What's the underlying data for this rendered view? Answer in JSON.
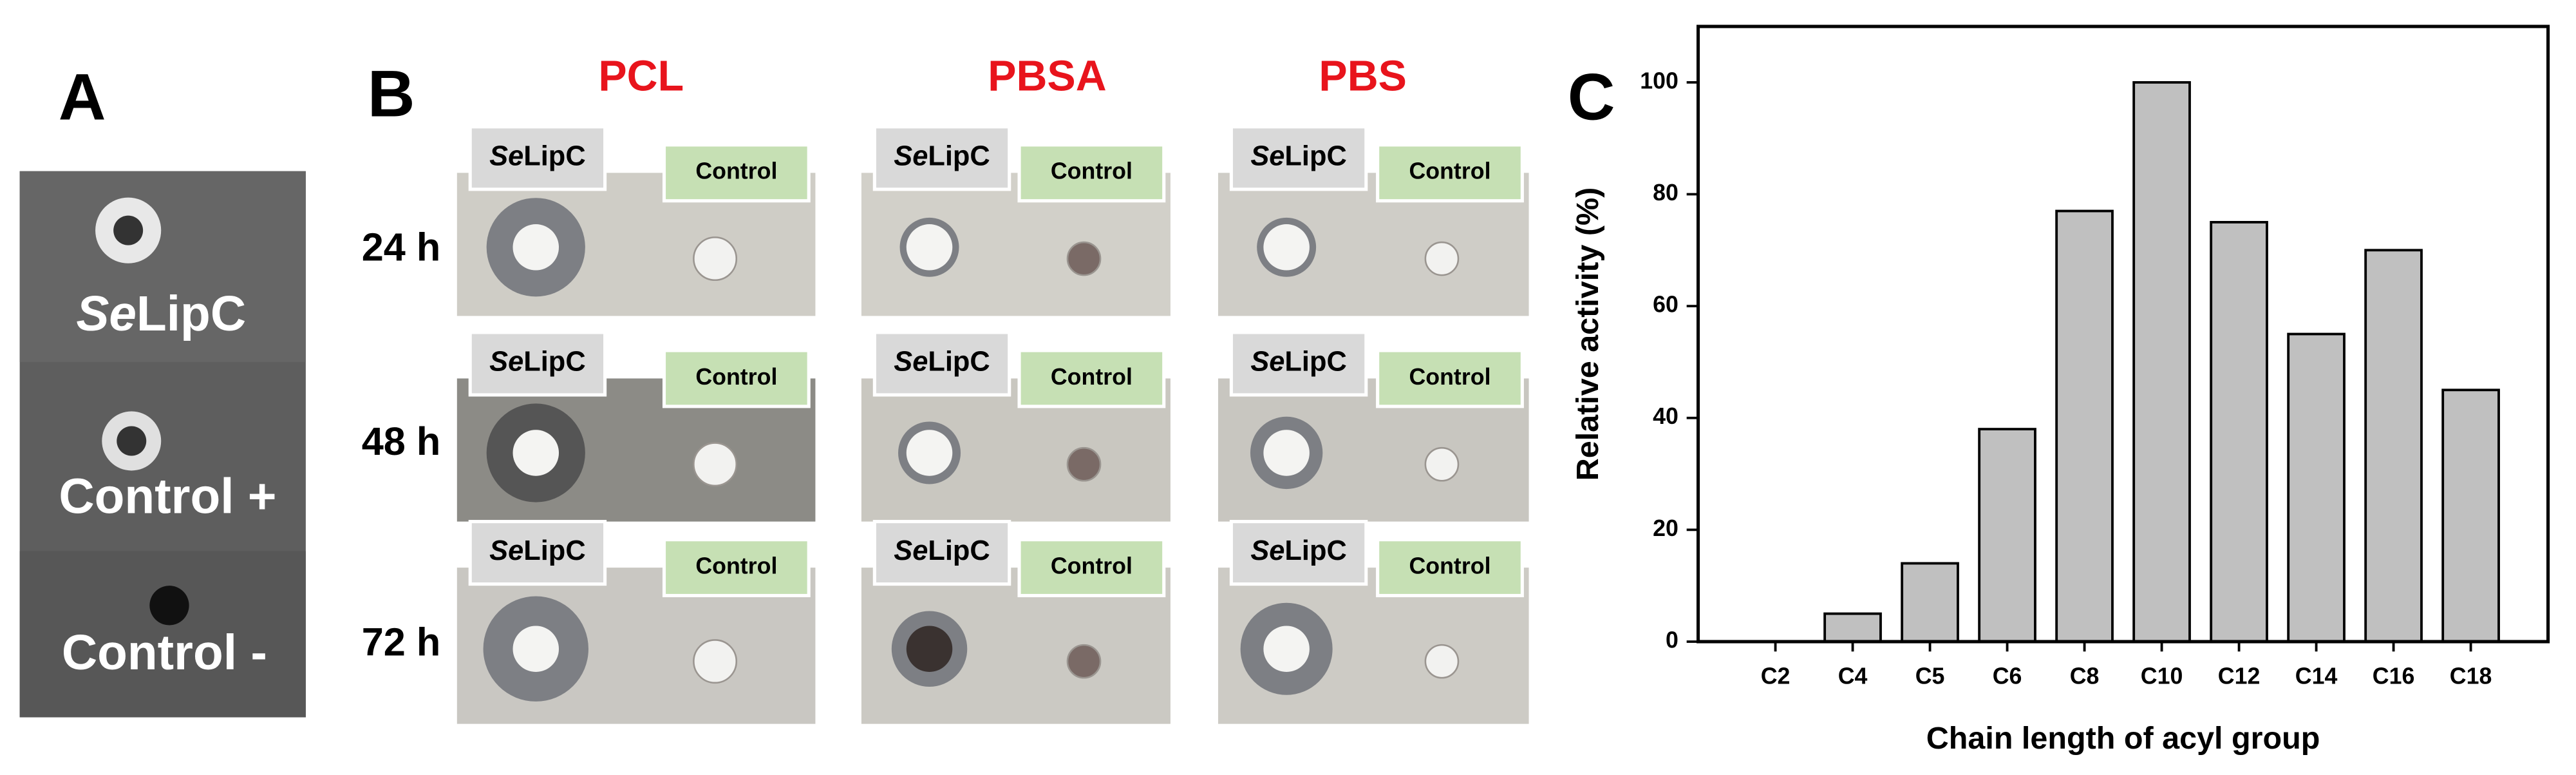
{
  "panel_a": {
    "label": "A",
    "labels": [
      {
        "italic": "Se",
        "rest": "LipC"
      },
      "Control +",
      "Control -"
    ]
  },
  "panel_b": {
    "label": "B",
    "columns": [
      "PCL",
      "PBSA",
      "PBS"
    ],
    "rows": [
      "24 h",
      "48 h",
      "72 h"
    ],
    "tag_sample": {
      "italic": "Se",
      "rest": "LipC"
    },
    "tag_control": "Control"
  },
  "chart_data": {
    "type": "bar",
    "panel_label": "C",
    "categories": [
      "C2",
      "C4",
      "C5",
      "C6",
      "C8",
      "C10",
      "C12",
      "C14",
      "C16",
      "C18"
    ],
    "values": [
      0,
      5,
      14,
      38,
      77,
      100,
      75,
      55,
      70,
      45
    ],
    "color": "#c0c0c0",
    "ylim": [
      0,
      110
    ],
    "yticks": [
      0,
      20,
      40,
      60,
      80,
      100
    ],
    "ylabel": "Relative activity (%)",
    "xlabel": "Chain length of acyl group"
  }
}
